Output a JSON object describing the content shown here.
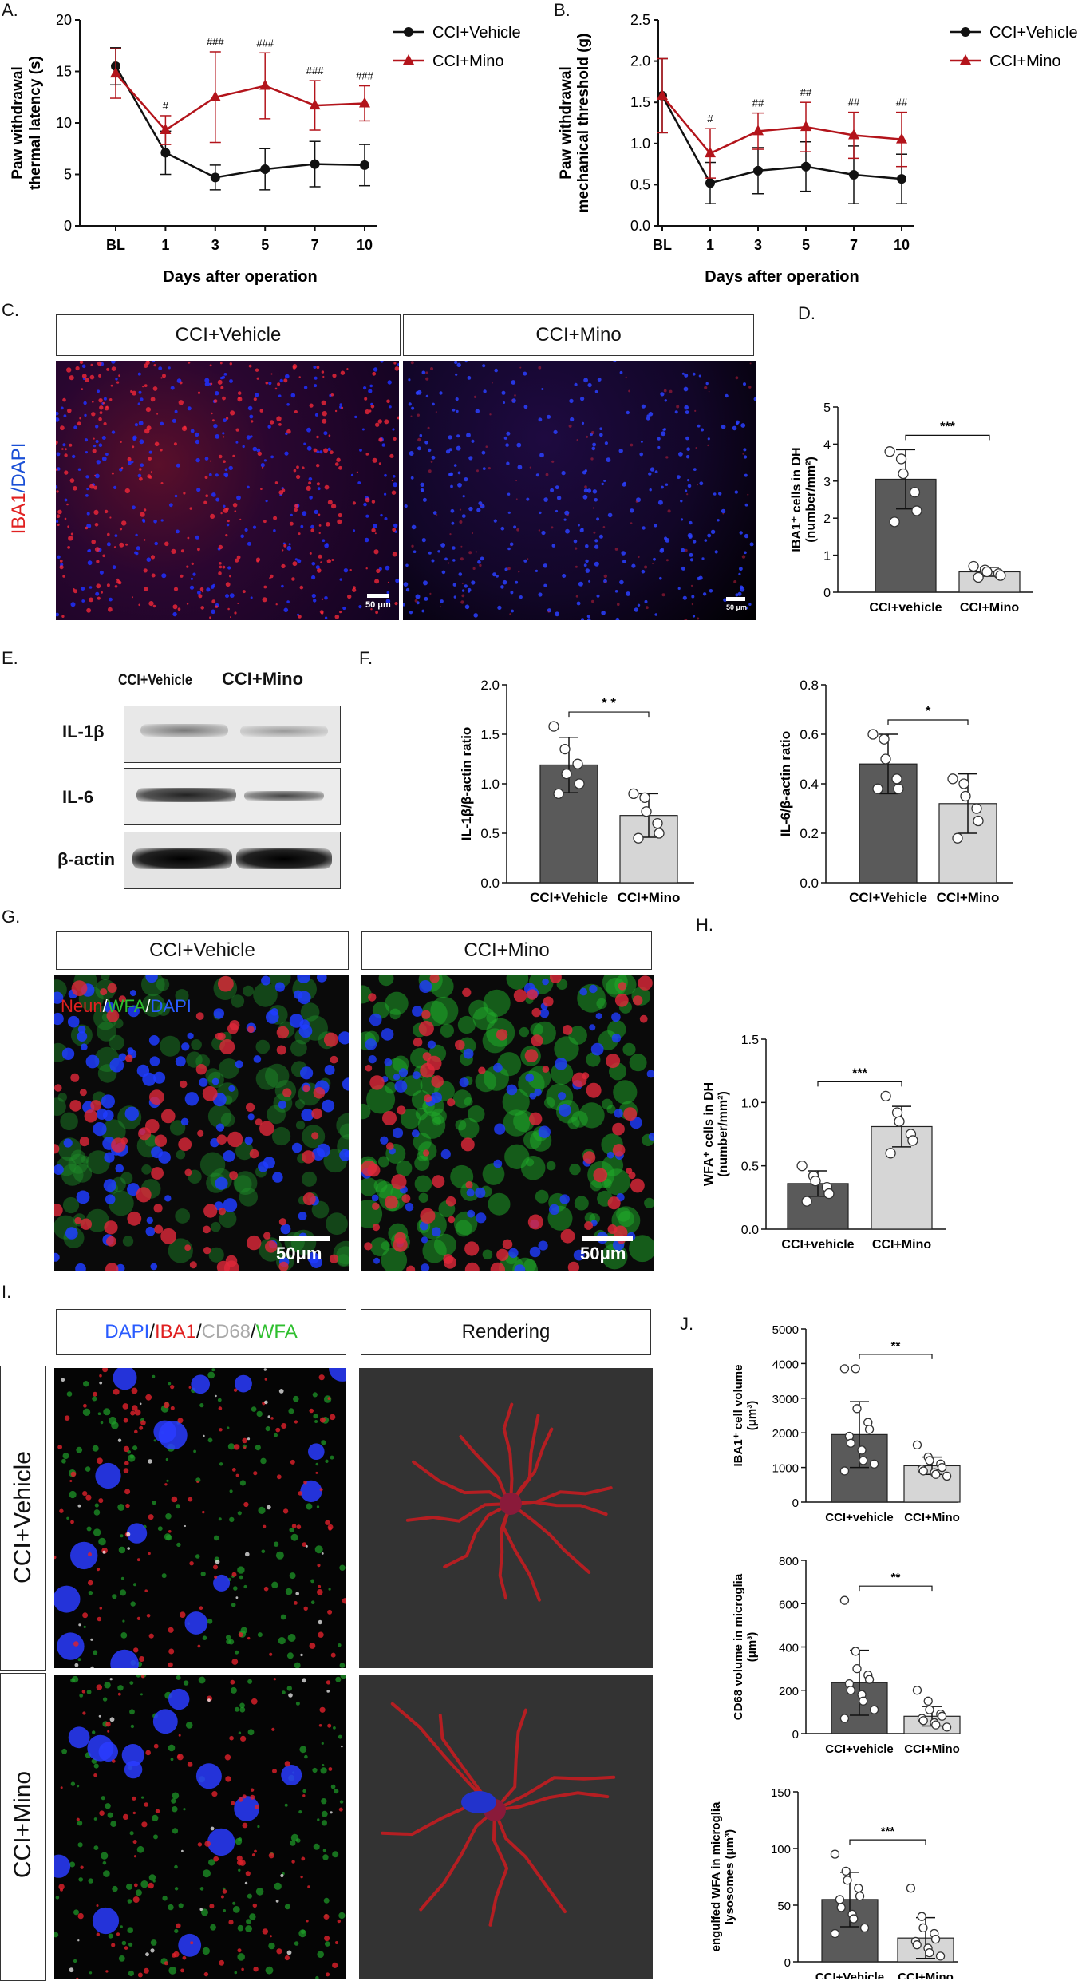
{
  "panels": {
    "A": "A.",
    "B": "B.",
    "C": "C.",
    "D": "D.",
    "E": "E.",
    "F": "F.",
    "G": "G.",
    "H": "H.",
    "I": "I.",
    "J": "J."
  },
  "colors": {
    "vehicle": "#111111",
    "mino": "#b3141b",
    "bar_dark": "#5a5a5a",
    "bar_light": "#d6d6d6"
  },
  "panel_C": {
    "label_left": "CCI+Vehicle",
    "label_right": "CCI+Mino",
    "stain_a": "IBA1",
    "stain_sep": "/",
    "stain_b": "DAPI",
    "scale_left": "50 μm",
    "scale_right": "50 μm"
  },
  "panel_E": {
    "col_vehicle": "CCI+Vehicle",
    "col_mino": "CCI+Mino",
    "rows": [
      "IL-1β",
      "IL-6",
      "β-actin"
    ]
  },
  "panel_G": {
    "label_left": "CCI+Vehicle",
    "label_right": "CCI+Mino",
    "stain_a": "Neun",
    "stain_b": "WFA",
    "stain_c": "DAPI",
    "scale_left": "50μm",
    "scale_right": "50μm"
  },
  "panel_I": {
    "header_left_a": "DAPI",
    "header_left_b": "IBA1",
    "header_left_c": "CD68",
    "header_left_d": "WFA",
    "header_right": "Rendering",
    "row_top": "CCI+Vehicle",
    "row_bottom": "CCI+Mino"
  },
  "chart_data": [
    {
      "id": "A",
      "type": "line",
      "xlabel": "Days after operation",
      "ylabel": "Paw withdrawal thermal latency (s)",
      "categories": [
        "BL",
        "1",
        "3",
        "5",
        "7",
        "10"
      ],
      "ylim": [
        0,
        20
      ],
      "yticks": [
        0,
        5,
        10,
        15,
        20
      ],
      "series": [
        {
          "name": "CCI+Vehicle",
          "values": [
            15.5,
            7.1,
            4.7,
            5.5,
            6.0,
            5.9
          ],
          "err": [
            1.8,
            2.1,
            1.2,
            2.0,
            2.2,
            2.0
          ]
        },
        {
          "name": "CCI+Mino",
          "values": [
            14.8,
            9.3,
            12.5,
            13.6,
            11.7,
            11.9
          ],
          "err": [
            2.4,
            1.4,
            4.4,
            3.2,
            2.4,
            1.7
          ]
        }
      ],
      "annotations": [
        "",
        "#",
        "###",
        "###",
        "###",
        "###"
      ]
    },
    {
      "id": "B",
      "type": "line",
      "xlabel": "Days after operation",
      "ylabel": "Paw withdrawal mechanical threshold (g)",
      "categories": [
        "BL",
        "1",
        "3",
        "5",
        "7",
        "10"
      ],
      "ylim": [
        0,
        2.5
      ],
      "yticks": [
        "0.0",
        "0.5",
        "1.0",
        "1.5",
        "2.0",
        "2.5"
      ],
      "series": [
        {
          "name": "CCI+Vehicle",
          "values": [
            1.58,
            0.52,
            0.67,
            0.72,
            0.62,
            0.57
          ],
          "err": [
            0.45,
            0.25,
            0.28,
            0.3,
            0.35,
            0.3
          ]
        },
        {
          "name": "CCI+Mino",
          "values": [
            1.58,
            0.88,
            1.15,
            1.2,
            1.1,
            1.05
          ],
          "err": [
            0.45,
            0.3,
            0.22,
            0.3,
            0.28,
            0.33
          ]
        }
      ],
      "annotations": [
        "",
        "#",
        "##",
        "##",
        "##",
        "##"
      ]
    },
    {
      "id": "D",
      "type": "bar",
      "ylabel": "IBA1⁺ cells in DH (number/mm²)",
      "categories": [
        "CCI+vehicle",
        "CCI+Mino"
      ],
      "values": [
        3.05,
        0.55
      ],
      "err": [
        0.8,
        0.12
      ],
      "ylim": [
        0,
        5
      ],
      "yticks": [
        0,
        1,
        2,
        3,
        4,
        5
      ],
      "sig": "***",
      "points": [
        [
          3.8,
          3.6,
          3.2,
          2.7,
          2.2,
          1.9
        ],
        [
          0.7,
          0.6,
          0.55,
          0.5,
          0.45,
          0.4
        ]
      ]
    },
    {
      "id": "F1",
      "type": "bar",
      "ylabel": "IL-1β/β-actin ratio",
      "categories": [
        "CCI+Vehicle",
        "CCI+Mino"
      ],
      "values": [
        1.19,
        0.68
      ],
      "err": [
        0.28,
        0.22
      ],
      "ylim": [
        0,
        2
      ],
      "yticks": [
        "0.0",
        "0.5",
        "1.0",
        "1.5",
        "2.0"
      ],
      "sig": "* *",
      "points": [
        [
          1.58,
          1.35,
          1.1,
          1.2,
          1.0,
          0.9
        ],
        [
          0.9,
          0.86,
          0.72,
          0.6,
          0.5,
          0.45
        ]
      ]
    },
    {
      "id": "F2",
      "type": "bar",
      "ylabel": "IL-6/β-actin ratio",
      "categories": [
        "CCI+Vehicle",
        "CCI+Mino"
      ],
      "values": [
        0.48,
        0.32
      ],
      "err": [
        0.12,
        0.12
      ],
      "ylim": [
        0,
        0.8
      ],
      "yticks": [
        "0.0",
        "0.2",
        "0.4",
        "0.6",
        "0.8"
      ],
      "sig": "*",
      "points": [
        [
          0.6,
          0.58,
          0.5,
          0.42,
          0.38,
          0.38
        ],
        [
          0.42,
          0.4,
          0.35,
          0.3,
          0.25,
          0.18
        ]
      ]
    },
    {
      "id": "H",
      "type": "bar",
      "ylabel": "WFA⁺ cells in DH (number/mm²)",
      "categories": [
        "CCI+vehicle",
        "CCI+Mino"
      ],
      "values": [
        0.36,
        0.81
      ],
      "err": [
        0.1,
        0.16
      ],
      "ylim": [
        0,
        1.5
      ],
      "yticks": [
        "0.0",
        "0.5",
        "1.0",
        "1.5"
      ],
      "sig": "***",
      "points": [
        [
          0.5,
          0.42,
          0.38,
          0.33,
          0.28,
          0.22
        ],
        [
          1.05,
          0.92,
          0.85,
          0.75,
          0.7,
          0.6
        ]
      ]
    },
    {
      "id": "J1",
      "type": "bar",
      "ylabel": "IBA1⁺ cell volume (μm³)",
      "categories": [
        "CCI+vehicle",
        "CCI+Mino"
      ],
      "values": [
        1950,
        1050
      ],
      "err": [
        950,
        250
      ],
      "ylim": [
        0,
        5000
      ],
      "yticks": [
        0,
        1000,
        2000,
        3000,
        4000,
        5000
      ],
      "sig": "**",
      "points": [
        [
          3850,
          3850,
          2700,
          2300,
          2100,
          1900,
          1700,
          1500,
          1200,
          1100,
          900
        ],
        [
          1650,
          1300,
          1200,
          1100,
          1000,
          950,
          900,
          850,
          800,
          750
        ]
      ]
    },
    {
      "id": "J2",
      "type": "bar",
      "ylabel": "CD68 volume in microglia (μm³)",
      "categories": [
        "CCI+vehicle",
        "CCI+Mino"
      ],
      "values": [
        235,
        80
      ],
      "err": [
        150,
        45
      ],
      "ylim": [
        0,
        800
      ],
      "yticks": [
        0,
        200,
        400,
        600,
        800
      ],
      "sig": "**",
      "points": [
        [
          615,
          380,
          300,
          270,
          250,
          230,
          200,
          180,
          150,
          110,
          70
        ],
        [
          200,
          150,
          110,
          90,
          80,
          70,
          60,
          50,
          40,
          30
        ]
      ]
    },
    {
      "id": "J3",
      "type": "bar",
      "ylabel": "engulfed WFA in microglia lysosomes (μm³)",
      "categories": [
        "CCI+Vehicle",
        "CCI+Mino"
      ],
      "values": [
        55,
        21
      ],
      "err": [
        24,
        18
      ],
      "ylim": [
        0,
        150
      ],
      "yticks": [
        0,
        50,
        100,
        150
      ],
      "sig": "***",
      "points": [
        [
          95,
          80,
          72,
          65,
          58,
          55,
          48,
          42,
          38,
          30,
          25
        ],
        [
          65,
          40,
          30,
          25,
          20,
          18,
          15,
          12,
          8,
          5
        ]
      ]
    }
  ]
}
